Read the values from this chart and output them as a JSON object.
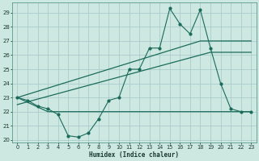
{
  "title": "",
  "xlabel": "Humidex (Indice chaleur)",
  "bg_color": "#cce8e0",
  "grid_color": "#aacccc",
  "line_color": "#1a6b5a",
  "xlim": [
    -0.5,
    23.5
  ],
  "ylim": [
    19.8,
    29.7
  ],
  "yticks": [
    20,
    21,
    22,
    23,
    24,
    25,
    26,
    27,
    28,
    29
  ],
  "xticks": [
    0,
    1,
    2,
    3,
    4,
    5,
    6,
    7,
    8,
    9,
    10,
    11,
    12,
    13,
    14,
    15,
    16,
    17,
    18,
    19,
    20,
    21,
    22,
    23
  ],
  "series1_x": [
    0,
    1,
    2,
    3,
    4,
    5,
    6,
    7,
    8,
    9,
    10,
    11,
    12,
    13,
    14,
    15,
    16,
    17,
    18,
    19,
    20,
    21,
    22,
    23
  ],
  "series1_y": [
    23.0,
    22.8,
    22.4,
    22.2,
    21.8,
    20.3,
    20.2,
    20.5,
    21.5,
    22.8,
    23.0,
    25.0,
    25.0,
    26.5,
    26.5,
    29.3,
    28.2,
    27.5,
    29.2,
    26.5,
    24.0,
    22.2,
    22.0,
    22.0
  ],
  "series2_x": [
    0,
    3,
    19,
    23
  ],
  "series2_y": [
    23.0,
    22.0,
    22.0,
    22.0
  ],
  "series3_x": [
    0,
    18,
    23
  ],
  "series3_y": [
    23.0,
    27.0,
    27.0
  ],
  "series4_x": [
    0,
    19,
    23
  ],
  "series4_y": [
    22.5,
    26.2,
    26.2
  ],
  "xlabel_fontsize": 5.5,
  "tick_fontsize": 4.8
}
